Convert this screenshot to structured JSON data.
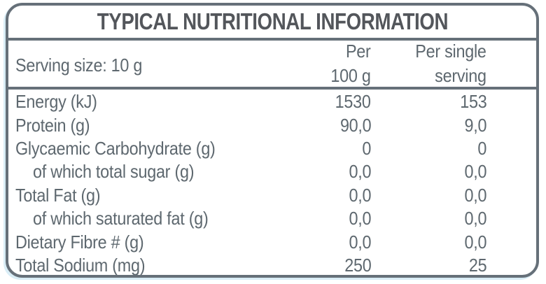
{
  "title": "TYPICAL NUTRITIONAL INFORMATION",
  "header": {
    "serving_size": "Serving size: 10 g",
    "per_100": {
      "line1": "Per",
      "line2": "100 g"
    },
    "per_serving": {
      "line1": "Per single",
      "line2": "serving"
    }
  },
  "rows": [
    {
      "label": "Energy (kJ)",
      "per_100g": "1530",
      "per_serving": "153",
      "indent": false
    },
    {
      "label": "Protein (g)",
      "per_100g": "90,0",
      "per_serving": "9,0",
      "indent": false
    },
    {
      "label": "Glycaemic Carbohydrate (g)",
      "per_100g": "0",
      "per_serving": "0",
      "indent": false
    },
    {
      "label": "of which total sugar (g)",
      "per_100g": "0,0",
      "per_serving": "0,0",
      "indent": true
    },
    {
      "label": "Total Fat (g)",
      "per_100g": "0,0",
      "per_serving": "0,0",
      "indent": false
    },
    {
      "label": "of which saturated fat (g)",
      "per_100g": "0,0",
      "per_serving": "0,0",
      "indent": true
    },
    {
      "label": "Dietary Fibre # (g)",
      "per_100g": "0,0",
      "per_serving": "0,0",
      "indent": false
    },
    {
      "label": "Total Sodium (mg)",
      "per_100g": "250",
      "per_serving": "25",
      "indent": false
    }
  ],
  "colors": {
    "border": "#667079",
    "title_text": "#53565b",
    "body_text": "#5e686f",
    "background": "#ffffff"
  }
}
